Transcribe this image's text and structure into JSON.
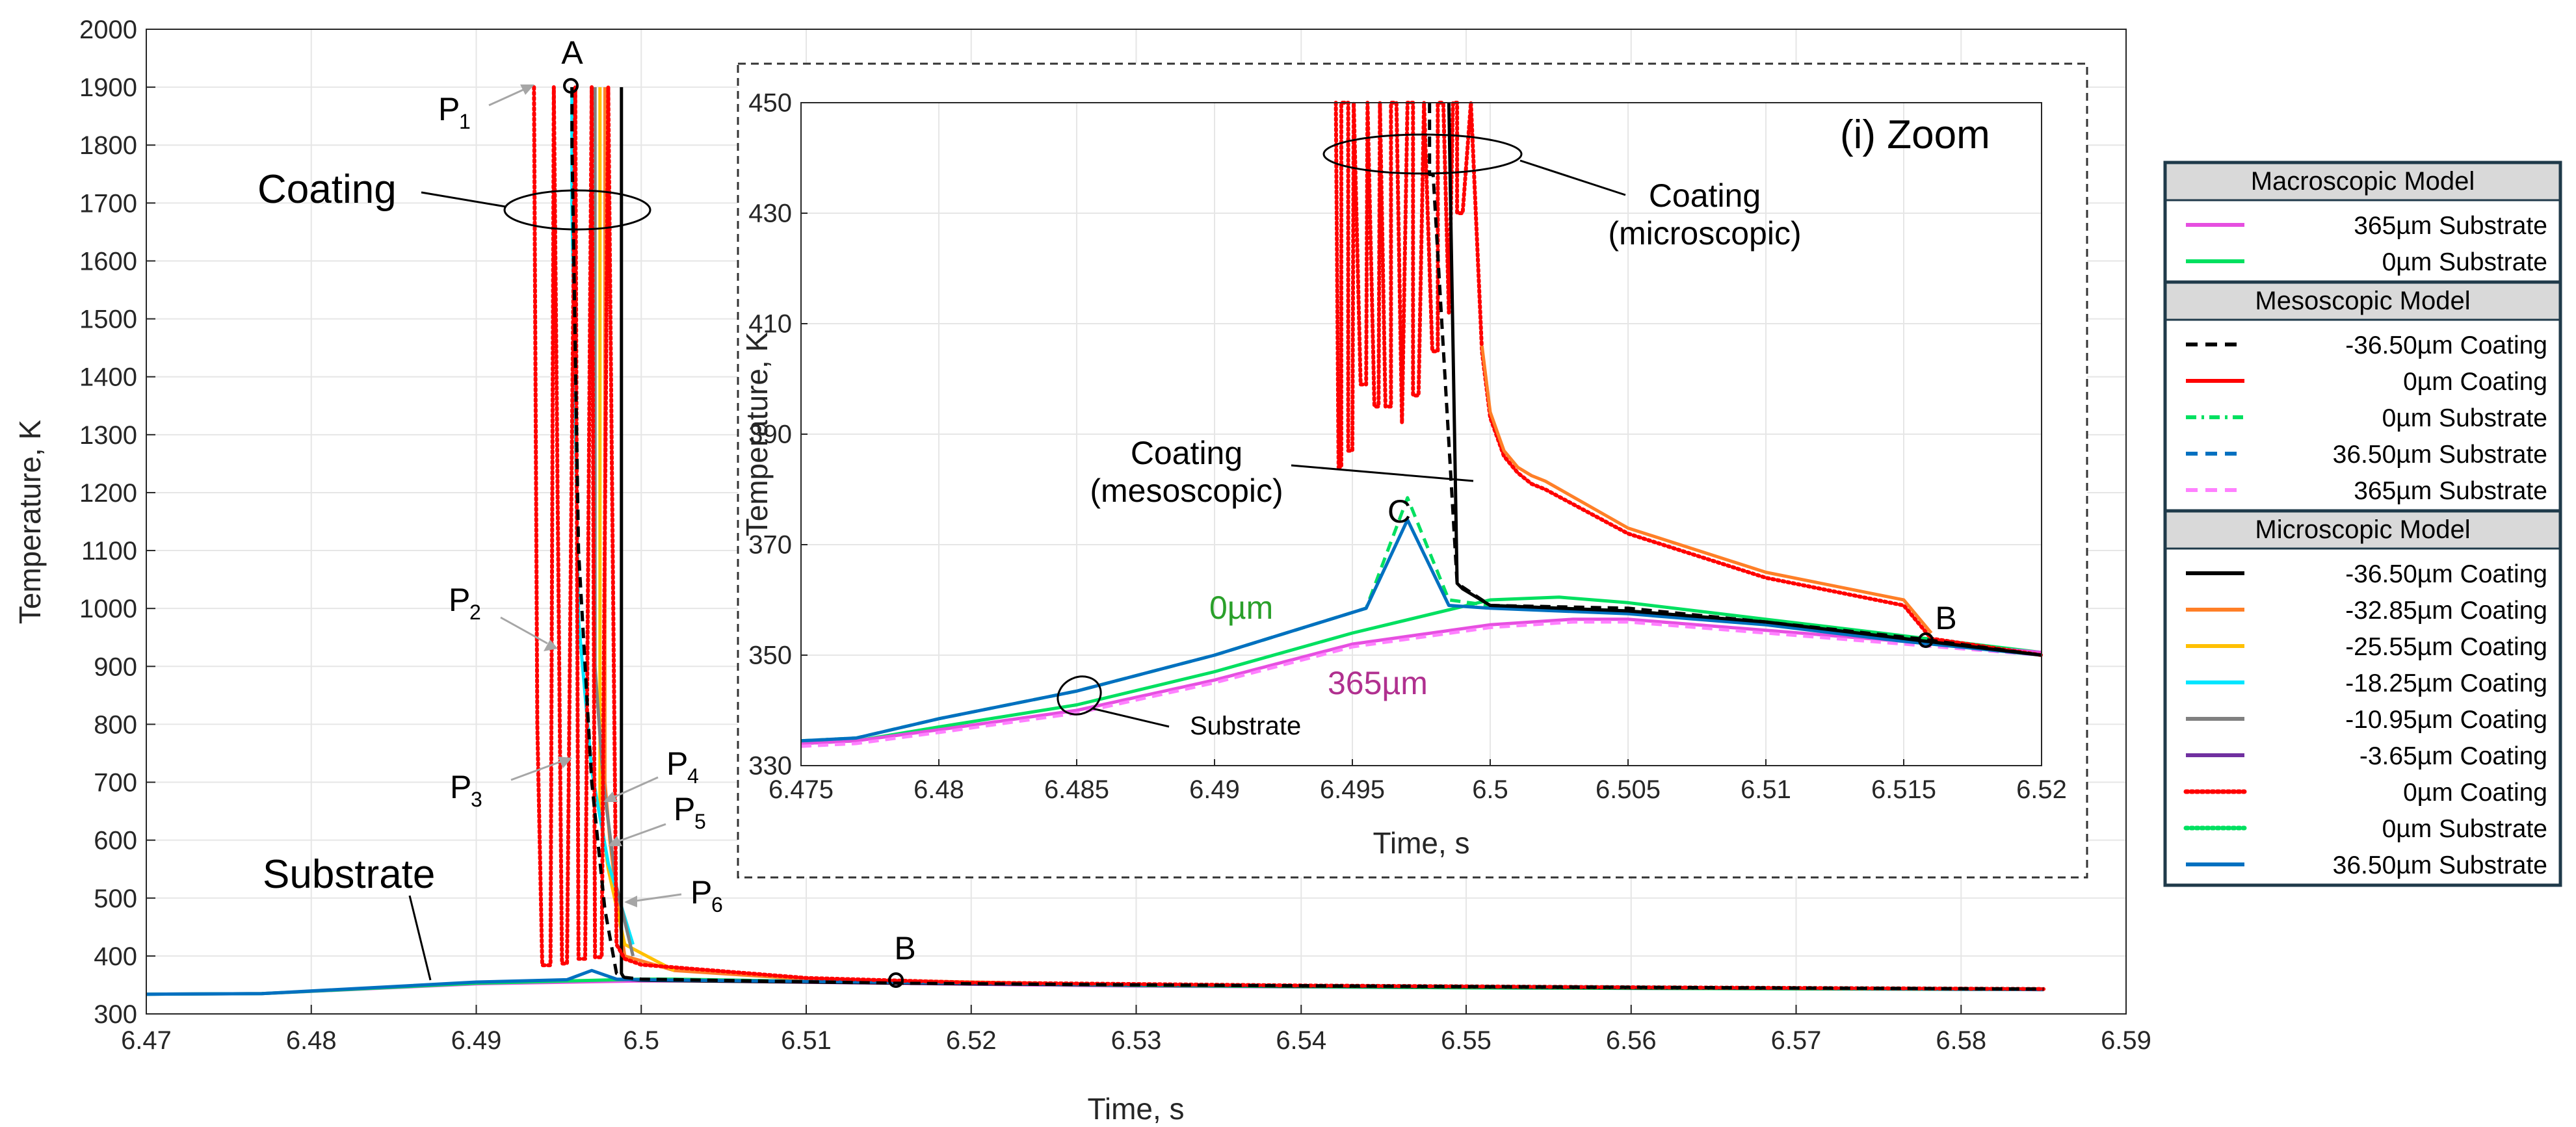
{
  "colors": {
    "black": "#000000",
    "red": "#ff0000",
    "orange": "#ff7f27",
    "yellow": "#ffc000",
    "cyan": "#00e5ff",
    "gray": "#808080",
    "purple": "#7030a0",
    "green": "#00e060",
    "blue": "#0070c0",
    "magenta": "#e64fe0",
    "pink": "#ff80ff",
    "grid": "#e6e6e6",
    "legendBorder": "#1f3a4a",
    "legendHeader": "#d9d9d9"
  },
  "chart_data": [
    {
      "id": "main",
      "type": "line",
      "xlabel": "Time, s",
      "ylabel": "Temperature, K",
      "xlim": [
        6.47,
        6.59
      ],
      "ylim": [
        300,
        2000
      ],
      "xticks": [
        6.47,
        6.48,
        6.49,
        6.5,
        6.51,
        6.52,
        6.53,
        6.54,
        6.55,
        6.56,
        6.57,
        6.58,
        6.59
      ],
      "xtick_labels": [
        "6.47",
        "6.48",
        "6.49",
        "6.5",
        "6.51",
        "6.52",
        "6.53",
        "6.54",
        "6.55",
        "6.56",
        "6.57",
        "6.58",
        "6.59"
      ],
      "yticks": [
        300,
        400,
        500,
        600,
        700,
        800,
        900,
        1000,
        1100,
        1200,
        1300,
        1400,
        1500,
        1600,
        1700,
        1800,
        1900,
        2000
      ],
      "ytick_labels": [
        "300",
        "400",
        "500",
        "600",
        "700",
        "800",
        "900",
        "1000",
        "1100",
        "1200",
        "1300",
        "1400",
        "1500",
        "1600",
        "1700",
        "1800",
        "1900",
        "2000"
      ],
      "grid": true,
      "series": [
        {
          "name": "365µm Substrate (macro)",
          "color": "#e64fe0",
          "dash": "solid",
          "x": [
            6.47,
            6.477,
            6.49,
            6.5,
            6.503,
            6.515,
            6.53,
            6.55,
            6.585
          ],
          "y": [
            334,
            335,
            352,
            357,
            357,
            353,
            348,
            345,
            342
          ]
        },
        {
          "name": "0µm Substrate (macro)",
          "color": "#00e060",
          "dash": "solid",
          "x": [
            6.47,
            6.477,
            6.49,
            6.5,
            6.502,
            6.515,
            6.53,
            6.55,
            6.585
          ],
          "y": [
            334,
            335,
            353,
            360,
            360,
            354,
            349,
            345,
            342
          ]
        },
        {
          "name": "-32.85µm Coating (micro)",
          "color": "#ff7f27",
          "dash": "solid",
          "x": [
            6.4978,
            6.4978,
            6.4981,
            6.4986,
            6.499,
            6.502,
            6.51,
            6.53
          ],
          "y": [
            1900,
            700,
            600,
            480,
            400,
            375,
            360,
            350
          ]
        },
        {
          "name": "-25.55µm Coating (micro)",
          "color": "#ffc000",
          "dash": "solid",
          "x": [
            6.4975,
            6.4975,
            6.498,
            6.499,
            6.502
          ],
          "y": [
            1900,
            650,
            550,
            420,
            375
          ]
        },
        {
          "name": "-18.25µm Coating (micro)",
          "color": "#00e5ff",
          "dash": "solid",
          "x": [
            6.4958,
            6.4958,
            6.4962,
            6.497,
            6.498,
            6.4995
          ],
          "y": [
            1900,
            1700,
            980,
            720,
            560,
            420
          ]
        },
        {
          "name": "-10.95µm Coating (micro)",
          "color": "#808080",
          "dash": "solid",
          "x": [
            6.4972,
            6.4972,
            6.4977,
            6.4985,
            6.4995
          ],
          "y": [
            1900,
            900,
            700,
            520,
            400
          ]
        },
        {
          "name": "-36.50µm Coating (micro)",
          "color": "#000000",
          "dash": "solid",
          "x": [
            6.4988,
            6.4988,
            6.499,
            6.5,
            6.51,
            6.52,
            6.54,
            6.56,
            6.585
          ],
          "y": [
            1900,
            370,
            360,
            358,
            355,
            352,
            348,
            345,
            343
          ]
        },
        {
          "name": "36.50µm Substrate (micro)",
          "color": "#0070c0",
          "dash": "solid",
          "x": [
            6.47,
            6.477,
            6.49,
            6.4955,
            6.497,
            6.4985,
            6.5,
            6.51,
            6.53,
            6.56,
            6.585
          ],
          "y": [
            334,
            335,
            355,
            359,
            375,
            360,
            359,
            356,
            350,
            346,
            342
          ]
        },
        {
          "name": "0µm Coating (micro)",
          "color": "#ff0000",
          "dash": "dotted",
          "x": [
            6.4935,
            6.4937,
            6.494,
            6.4945,
            6.4947,
            6.4952,
            6.4955,
            6.496,
            6.4962,
            6.4966,
            6.497,
            6.4972,
            6.4976,
            6.498,
            6.4985,
            6.499,
            6.5,
            6.51,
            6.52,
            6.54,
            6.56,
            6.585
          ],
          "y": [
            1900,
            800,
            384,
            384,
            1900,
            387,
            387,
            1900,
            395,
            395,
            1900,
            398,
            398,
            1900,
            420,
            395,
            385,
            362,
            354,
            349,
            346,
            343
          ]
        },
        {
          "name": "-36.50µm Coating (meso)",
          "color": "#000000",
          "dash": "dashed",
          "x": [
            6.4958,
            6.4958,
            6.4962,
            6.497,
            6.4978,
            6.4985,
            6.499,
            6.5,
            6.5155,
            6.53,
            6.56,
            6.585
          ],
          "y": [
            1900,
            1800,
            1100,
            700,
            480,
            370,
            363,
            360,
            353,
            350,
            346,
            343
          ]
        }
      ],
      "annotations": [
        {
          "text": "A",
          "x": 6.4958,
          "y": 1900
        },
        {
          "text": "B",
          "x": 6.5155,
          "y": 353
        },
        {
          "text": "P",
          "sub": "1",
          "x": 6.4938,
          "y": 1900
        },
        {
          "text": "P",
          "sub": "2",
          "x": 6.4942,
          "y": 930
        },
        {
          "text": "P",
          "sub": "3",
          "x": 6.4955,
          "y": 730
        },
        {
          "text": "P",
          "sub": "4",
          "x": 6.4968,
          "y": 670
        },
        {
          "text": "P",
          "sub": "5",
          "x": 6.4977,
          "y": 590
        },
        {
          "text": "P",
          "sub": "6",
          "x": 6.4985,
          "y": 490
        }
      ],
      "labels": {
        "coating": "Coating",
        "substrate": "Substrate"
      }
    },
    {
      "id": "inset",
      "type": "line",
      "title": "(i) Zoom",
      "xlabel": "Time, s",
      "ylabel": "Temperature, K",
      "xlim": [
        6.475,
        6.52
      ],
      "ylim": [
        330,
        450
      ],
      "xticks": [
        6.475,
        6.48,
        6.485,
        6.49,
        6.495,
        6.5,
        6.505,
        6.51,
        6.515,
        6.52
      ],
      "xtick_labels": [
        "6.475",
        "6.48",
        "6.485",
        "6.49",
        "6.495",
        "6.5",
        "6.505",
        "6.51",
        "6.515",
        "6.52"
      ],
      "yticks": [
        330,
        350,
        370,
        390,
        410,
        430,
        450
      ],
      "ytick_labels": [
        "330",
        "350",
        "370",
        "390",
        "410",
        "430",
        "450"
      ],
      "grid": true,
      "series": [
        {
          "name": "0µm Substrate (macro)",
          "color": "#00e060",
          "dash": "solid",
          "x": [
            6.475,
            6.477,
            6.48,
            6.485,
            6.49,
            6.495,
            6.5,
            6.5025,
            6.505,
            6.51,
            6.515,
            6.52
          ],
          "y": [
            334,
            334.5,
            337,
            341,
            347,
            354,
            360,
            360.5,
            359.5,
            356.5,
            353.5,
            350.5
          ]
        },
        {
          "name": "365µm Substrate (macro)",
          "color": "#e64fe0",
          "dash": "solid",
          "x": [
            6.475,
            6.477,
            6.48,
            6.485,
            6.49,
            6.495,
            6.5,
            6.503,
            6.505,
            6.51,
            6.515,
            6.52
          ],
          "y": [
            334,
            334.5,
            336.5,
            340,
            345.5,
            352,
            355.5,
            356.5,
            356.5,
            354.5,
            352.5,
            350.5
          ]
        },
        {
          "name": "365µm Substrate (meso)",
          "color": "#ff80ff",
          "dash": "dashed",
          "x": [
            6.475,
            6.477,
            6.48,
            6.485,
            6.49,
            6.495,
            6.5,
            6.503,
            6.505,
            6.51,
            6.515,
            6.52
          ],
          "y": [
            333.5,
            334,
            336,
            339.5,
            345,
            351.5,
            355,
            356,
            356,
            354,
            352,
            350
          ]
        },
        {
          "name": "0µm Substrate (meso)",
          "color": "#00e060",
          "dash": "dashed",
          "x": [
            6.475,
            6.477,
            6.48,
            6.485,
            6.49,
            6.4955,
            6.497,
            6.4985,
            6.5,
            6.505,
            6.51,
            6.515,
            6.52
          ],
          "y": [
            334.5,
            335,
            338.5,
            343.5,
            350,
            358.5,
            378.5,
            360,
            359,
            358,
            356,
            353,
            350
          ]
        },
        {
          "name": "36.50µm Substrate (micro)",
          "color": "#0070c0",
          "dash": "solid",
          "x": [
            6.475,
            6.477,
            6.48,
            6.485,
            6.49,
            6.4955,
            6.497,
            6.4985,
            6.5,
            6.505,
            6.51,
            6.515,
            6.52
          ],
          "y": [
            334.5,
            335,
            338.5,
            343.5,
            350,
            358.5,
            374.5,
            359,
            358.5,
            357.5,
            355.5,
            352.5,
            350
          ]
        },
        {
          "name": "0µm Coating (micro)",
          "color": "#ff0000",
          "dash": "dotted",
          "x": [
            6.4944,
            6.4944,
            6.4945,
            6.4946,
            6.4946,
            6.49485,
            6.49485,
            6.495,
            6.49505,
            6.49505,
            6.4953,
            6.4955,
            6.49555,
            6.49555,
            6.4958,
            6.49595,
            6.496,
            6.496,
            6.4962,
            6.4964,
            6.4964,
            6.4966,
            6.4968,
            6.4968,
            6.497,
            6.4972,
            6.4972,
            6.4974,
            6.4976,
            6.4976,
            6.4979,
            6.4981,
            6.4981,
            6.4983,
            6.4985,
            6.4985,
            6.49865,
            6.4988,
            6.4988,
            6.499,
            6.4993,
            6.4993,
            6.4997,
            6.5,
            6.5005,
            6.501,
            6.5015,
            6.502,
            6.505,
            6.51,
            6.515,
            6.516,
            6.52
          ],
          "y": [
            450,
            450,
            384,
            384,
            450,
            450,
            387,
            387,
            450,
            450,
            399,
            399,
            450,
            450,
            395,
            395,
            450,
            450,
            395,
            395,
            450,
            450,
            392,
            392,
            450,
            450,
            397,
            397,
            450,
            450,
            405,
            405,
            450,
            450,
            412,
            412,
            450,
            450,
            430,
            430,
            450,
            450,
            405,
            393,
            386,
            383,
            381,
            380,
            372,
            364,
            359,
            353,
            350
          ]
        },
        {
          "name": "-32.85µm Coating (micro)",
          "color": "#ff7f27",
          "dash": "solid",
          "x": [
            6.4997,
            6.5,
            6.5005,
            6.501,
            6.5015,
            6.502,
            6.505,
            6.51,
            6.515,
            6.516
          ],
          "y": [
            406,
            394,
            387,
            384,
            382.5,
            381.5,
            373,
            365,
            360,
            354
          ]
        },
        {
          "name": "-36.50µm Coating (micro)",
          "color": "#000000",
          "dash": "solid",
          "x": [
            6.4985,
            6.4988,
            6.499,
            6.5,
            6.505,
            6.51,
            6.515,
            6.52
          ],
          "y": [
            450,
            363,
            362,
            359,
            358,
            356,
            353,
            350
          ]
        },
        {
          "name": "-36.50µm Coating (meso)",
          "color": "#000000",
          "dash": "dashed",
          "x": [
            6.4978,
            6.4978,
            6.49793,
            6.4988,
            6.5,
            6.505,
            6.51,
            6.5155,
            6.52
          ],
          "y": [
            450,
            437,
            437,
            363,
            359,
            358.5,
            356,
            353,
            350
          ]
        }
      ],
      "annotations": [
        {
          "text": "C",
          "x": 6.4965,
          "y": 372
        },
        {
          "text": "B",
          "x": 6.5156,
          "y": 353
        }
      ],
      "labels": {
        "coating_micro_1": "Coating",
        "coating_micro_2": "(microscopic)",
        "coating_meso_1": "Coating",
        "coating_meso_2": "(mesoscopic)",
        "label_0um": "0µm",
        "label_365um": "365µm",
        "substrate": "Substrate"
      }
    }
  ],
  "legend": {
    "groups": [
      {
        "header": "Macroscopic Model",
        "items": [
          {
            "label": "365µm Substrate",
            "color": "#e64fe0",
            "dash": "solid"
          },
          {
            "label": "0µm Substrate",
            "color": "#00e060",
            "dash": "solid"
          }
        ]
      },
      {
        "header": "Mesoscopic Model",
        "items": [
          {
            "label": "-36.50µm Coating",
            "color": "#000000",
            "dash": "dashed"
          },
          {
            "label": "0µm Coating",
            "color": "#ff0000",
            "dash": "solid"
          },
          {
            "label": "0µm Substrate",
            "color": "#00e060",
            "dash": "dashdot"
          },
          {
            "label": "36.50µm Substrate",
            "color": "#0070c0",
            "dash": "dashed"
          },
          {
            "label": "365µm Substrate",
            "color": "#ff80ff",
            "dash": "dashed"
          }
        ]
      },
      {
        "header": "Microscopic Model",
        "items": [
          {
            "label": "-36.50µm Coating",
            "color": "#000000",
            "dash": "solid"
          },
          {
            "label": "-32.85µm Coating",
            "color": "#ff7f27",
            "dash": "solid"
          },
          {
            "label": "-25.55µm Coating",
            "color": "#ffc000",
            "dash": "solid"
          },
          {
            "label": "-18.25µm Coating",
            "color": "#00e5ff",
            "dash": "solid"
          },
          {
            "label": "-10.95µm Coating",
            "color": "#808080",
            "dash": "solid"
          },
          {
            "label": "-3.65µm Coating",
            "color": "#7030a0",
            "dash": "solid"
          },
          {
            "label": "0µm Coating",
            "color": "#ff0000",
            "dash": "dotted"
          },
          {
            "label": "0µm Substrate",
            "color": "#00e060",
            "dash": "dotted"
          },
          {
            "label": "36.50µm Substrate",
            "color": "#0070c0",
            "dash": "solid"
          }
        ]
      }
    ]
  }
}
